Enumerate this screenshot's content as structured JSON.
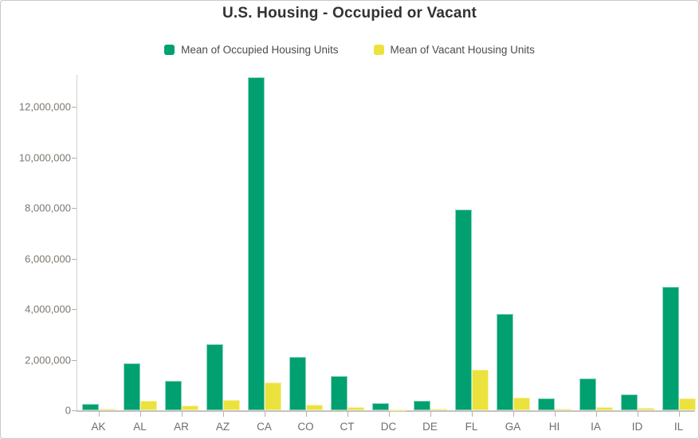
{
  "chart_data": {
    "type": "bar",
    "title": "U.S. Housing - Occupied or Vacant",
    "categories": [
      "AK",
      "AL",
      "AR",
      "AZ",
      "CA",
      "CO",
      "CT",
      "DC",
      "DE",
      "FL",
      "GA",
      "HI",
      "IA",
      "ID",
      "IL"
    ],
    "series": [
      {
        "name": "Mean of Occupied Housing Units",
        "color": "#00a070",
        "values": [
          250000,
          1850000,
          1150000,
          2620000,
          13150000,
          2100000,
          1360000,
          280000,
          365000,
          7950000,
          3820000,
          465000,
          1260000,
          640000,
          4880000
        ]
      },
      {
        "name": "Mean of Vacant Housing Units",
        "color": "#ece23e",
        "values": [
          60000,
          380000,
          190000,
          400000,
          1100000,
          225000,
          125000,
          40000,
          60000,
          1620000,
          490000,
          75000,
          130000,
          80000,
          480000
        ]
      }
    ],
    "xlabel": "",
    "ylabel": "",
    "y_ticks": [
      {
        "value": 0,
        "label": "0"
      },
      {
        "value": 2000000,
        "label": "2,000,000"
      },
      {
        "value": 4000000,
        "label": "4,000,000"
      },
      {
        "value": 6000000,
        "label": "6,000,000"
      },
      {
        "value": 8000000,
        "label": "8,000,000"
      },
      {
        "value": 10000000,
        "label": "10,000,000"
      },
      {
        "value": 12000000,
        "label": "12,000,000"
      }
    ],
    "ylim": [
      0,
      13400000
    ],
    "grid": false,
    "legend_position": "top"
  }
}
